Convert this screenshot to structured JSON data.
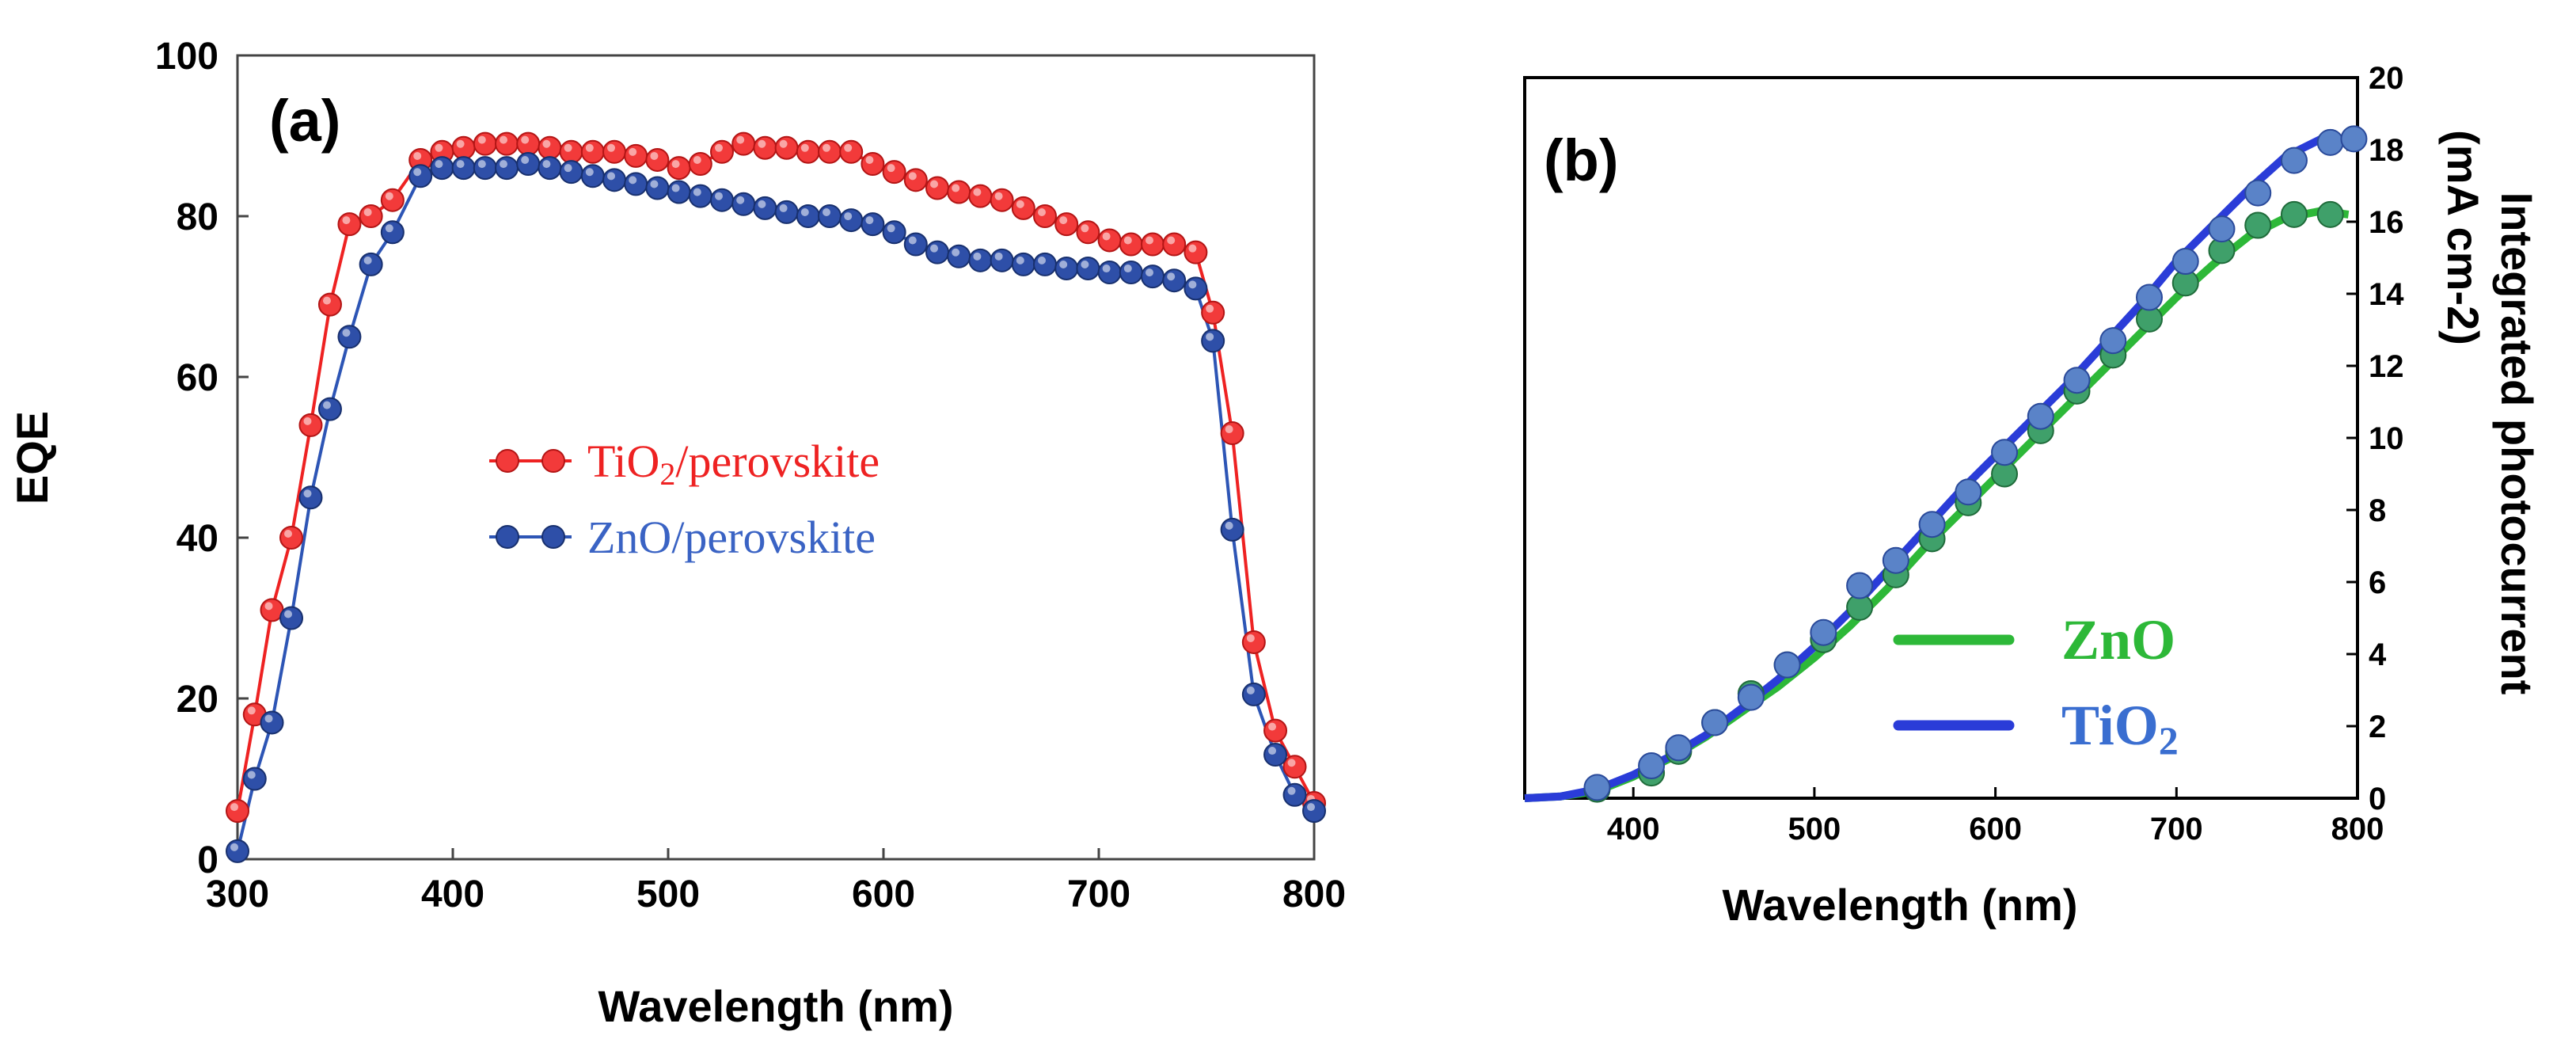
{
  "chart_data": [
    {
      "type": "line",
      "panel_label": "(a)",
      "xlabel": "Wavelength (nm)",
      "ylabel": "EQE",
      "xlim": [
        300,
        800
      ],
      "ylim": [
        0,
        100
      ],
      "x_ticks": [
        "300",
        "400",
        "500",
        "600",
        "700",
        "800"
      ],
      "y_ticks": [
        "0",
        "20",
        "40",
        "60",
        "80",
        "100"
      ],
      "legend_position": "center-left",
      "series": [
        {
          "name": "TiO2/perovskite",
          "label_main": "TiO",
          "label_sub": "2",
          "label_rest": "/perovskite",
          "color": "#ee2222",
          "marker_fill": "#f23a3a",
          "x": [
            300,
            308,
            316,
            325,
            334,
            343,
            352,
            362,
            372,
            385,
            395,
            405,
            415,
            425,
            435,
            445,
            455,
            465,
            475,
            485,
            495,
            505,
            515,
            525,
            535,
            545,
            555,
            565,
            575,
            585,
            595,
            605,
            615,
            625,
            635,
            645,
            655,
            665,
            675,
            685,
            695,
            705,
            715,
            725,
            735,
            745,
            753,
            762,
            772,
            782,
            791,
            800
          ],
          "values": [
            6,
            18,
            31,
            40,
            54,
            69,
            79,
            80,
            82,
            87,
            88,
            88.5,
            89,
            89,
            89,
            88.5,
            88,
            88,
            88,
            87.5,
            87,
            86,
            86.5,
            88,
            89,
            88.5,
            88.5,
            88,
            88,
            88,
            86.5,
            85.5,
            84.5,
            83.5,
            83,
            82.5,
            82,
            81,
            80,
            79,
            78,
            77,
            76.5,
            76.5,
            76.5,
            75.5,
            68,
            53,
            27,
            16,
            11.5,
            7
          ]
        },
        {
          "name": "ZnO/perovskite",
          "label_main": "ZnO/perovskite",
          "label_sub": "",
          "label_rest": "",
          "color": "#2d55b5",
          "marker_fill": "#2e4fa8",
          "x": [
            300,
            308,
            316,
            325,
            334,
            343,
            352,
            362,
            372,
            385,
            395,
            405,
            415,
            425,
            435,
            445,
            455,
            465,
            475,
            485,
            495,
            505,
            515,
            525,
            535,
            545,
            555,
            565,
            575,
            585,
            595,
            605,
            615,
            625,
            635,
            645,
            655,
            665,
            675,
            685,
            695,
            705,
            715,
            725,
            735,
            745,
            753,
            762,
            772,
            782,
            791,
            800
          ],
          "values": [
            1,
            10,
            17,
            30,
            45,
            56,
            65,
            74,
            78,
            85,
            86,
            86,
            86,
            86,
            86.5,
            86,
            85.5,
            85,
            84.5,
            84,
            83.5,
            83,
            82.5,
            82,
            81.5,
            81,
            80.5,
            80,
            80,
            79.5,
            79,
            78,
            76.5,
            75.5,
            75,
            74.5,
            74.5,
            74,
            74,
            73.5,
            73.5,
            73,
            73,
            72.5,
            72,
            71,
            64.5,
            41,
            20.5,
            13,
            8,
            6
          ]
        }
      ]
    },
    {
      "type": "line",
      "panel_label": "(b)",
      "xlabel": "Wavelength (nm)",
      "ylabel": "Integrated photocurrent (mA cm-2)",
      "ylabel_line1": "Integrated photocurrent",
      "ylabel_line2": "(mA cm-2)",
      "y_axis_side": "right",
      "xlim": [
        340,
        800
      ],
      "ylim": [
        0,
        20
      ],
      "x_ticks": [
        "400",
        "500",
        "600",
        "700",
        "800"
      ],
      "y_ticks": [
        "0",
        "2",
        "4",
        "6",
        "8",
        "10",
        "12",
        "14",
        "16",
        "18",
        "20"
      ],
      "legend_position": "bottom-right",
      "series": [
        {
          "name": "ZnO",
          "label_main": "ZnO",
          "label_sub": "",
          "color": "#2db838",
          "marker_fill": "#3fa06a",
          "x": [
            380,
            410,
            425,
            445,
            465,
            485,
            505,
            525,
            545,
            565,
            585,
            605,
            625,
            645,
            665,
            685,
            705,
            725,
            745,
            765,
            785
          ],
          "values": [
            0.25,
            0.7,
            1.3,
            2.1,
            2.9,
            3.7,
            4.4,
            5.3,
            6.2,
            7.2,
            8.2,
            9.0,
            10.2,
            11.3,
            12.3,
            13.3,
            14.3,
            15.2,
            15.9,
            16.2,
            16.2
          ],
          "curve_x": [
            340,
            360,
            380,
            400,
            420,
            440,
            460,
            480,
            500,
            520,
            540,
            560,
            580,
            600,
            620,
            640,
            660,
            680,
            700,
            720,
            740,
            760,
            780,
            795
          ],
          "curve_values": [
            0,
            0.05,
            0.2,
            0.6,
            1.1,
            1.7,
            2.4,
            3.1,
            3.9,
            4.8,
            5.8,
            6.9,
            7.9,
            8.9,
            9.9,
            10.9,
            11.9,
            12.9,
            13.9,
            14.8,
            15.6,
            16.1,
            16.3,
            16.2
          ]
        },
        {
          "name": "TiO2",
          "label_main": "TiO",
          "label_sub": "2",
          "color": "#2a3cd8",
          "marker_fill": "#5a83c8",
          "x": [
            380,
            410,
            425,
            445,
            465,
            485,
            505,
            525,
            545,
            565,
            585,
            605,
            625,
            645,
            665,
            685,
            705,
            725,
            745,
            765,
            785,
            798
          ],
          "values": [
            0.3,
            0.9,
            1.4,
            2.1,
            2.8,
            3.7,
            4.6,
            5.9,
            6.6,
            7.6,
            8.5,
            9.6,
            10.6,
            11.6,
            12.7,
            13.9,
            14.9,
            15.8,
            16.8,
            17.7,
            18.2,
            18.3
          ],
          "curve_x": [
            340,
            360,
            380,
            400,
            420,
            440,
            460,
            480,
            500,
            520,
            540,
            560,
            580,
            600,
            620,
            640,
            660,
            680,
            700,
            720,
            740,
            760,
            780,
            795
          ],
          "curve_values": [
            0,
            0.05,
            0.25,
            0.65,
            1.15,
            1.75,
            2.5,
            3.3,
            4.2,
            5.2,
            6.3,
            7.4,
            8.5,
            9.5,
            10.5,
            11.5,
            12.6,
            13.7,
            14.9,
            15.9,
            16.9,
            17.8,
            18.3,
            18.3
          ]
        }
      ]
    }
  ]
}
